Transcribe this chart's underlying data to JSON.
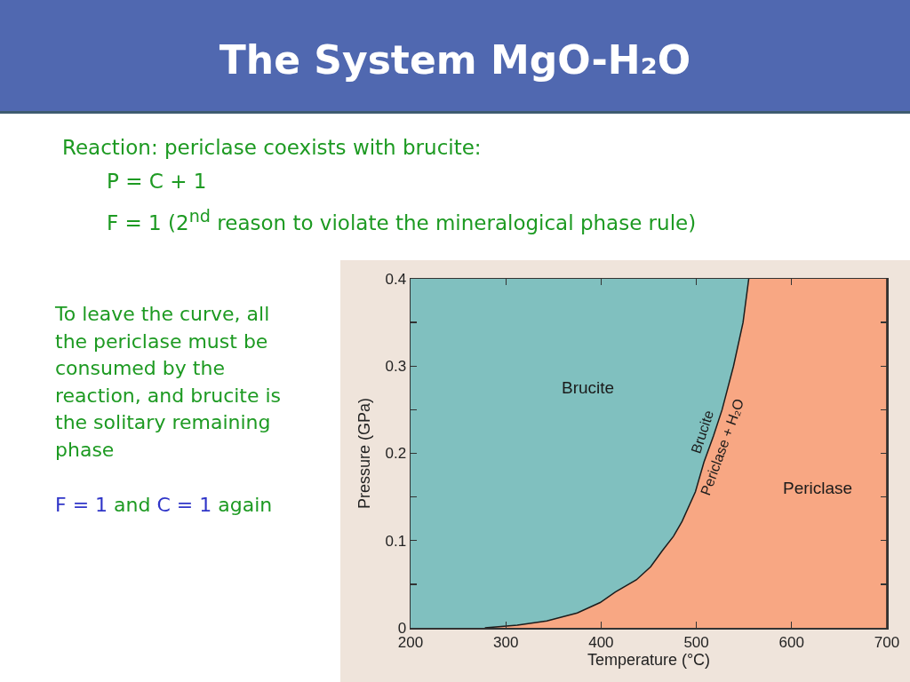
{
  "chart_data": {
    "type": "area",
    "title": "The System MgO-H₂O",
    "xlabel": "Temperature (°C)",
    "ylabel": "Pressure (GPa)",
    "orientation": "horizontal",
    "x": [
      0,
      0.003,
      0.008,
      0.017,
      0.029,
      0.041,
      0.055,
      0.07,
      0.088,
      0.105,
      0.122,
      0.156,
      0.19,
      0.22,
      0.25,
      0.3,
      0.35,
      0.4
    ],
    "series": [
      {
        "color": "#f8a783",
        "x": [
          0,
          0.4
        ],
        "values": [
          700,
          700
        ]
      },
      {
        "color": "#80c0bf",
        "values": [
          278,
          312,
          343,
          375,
          399,
          415,
          437,
          452,
          464,
          476,
          485,
          499,
          508,
          518,
          527,
          539,
          549,
          555
        ]
      }
    ],
    "xlim": [
      200,
      700
    ],
    "xticks": [
      200,
      300,
      400,
      500,
      600,
      700
    ],
    "ylim": [
      0,
      0.4
    ],
    "yticks": [
      0,
      {
        "value": 0.05,
        "label": null
      },
      0.1,
      {
        "value": 0.15,
        "label": null
      },
      0.2,
      {
        "value": 0.25,
        "label": null
      },
      0.3,
      {
        "value": 0.35,
        "label": null
      },
      0.4
    ],
    "annotations": [
      "Reaction: periclase coexists with brucite:",
      "P = C + 1",
      "F = 1 (2$^{nd}$ reason to violate the mineralogical phase rule)",
      "To leave the curve, all the periclase must be consumed by the reaction, and brucite is the solitary remaining phase",
      "F = 1",
      "and",
      "C = 1",
      "again",
      "Brucite",
      "Periclase",
      "Brucite",
      "Periclase + H₂O"
    ]
  }
}
